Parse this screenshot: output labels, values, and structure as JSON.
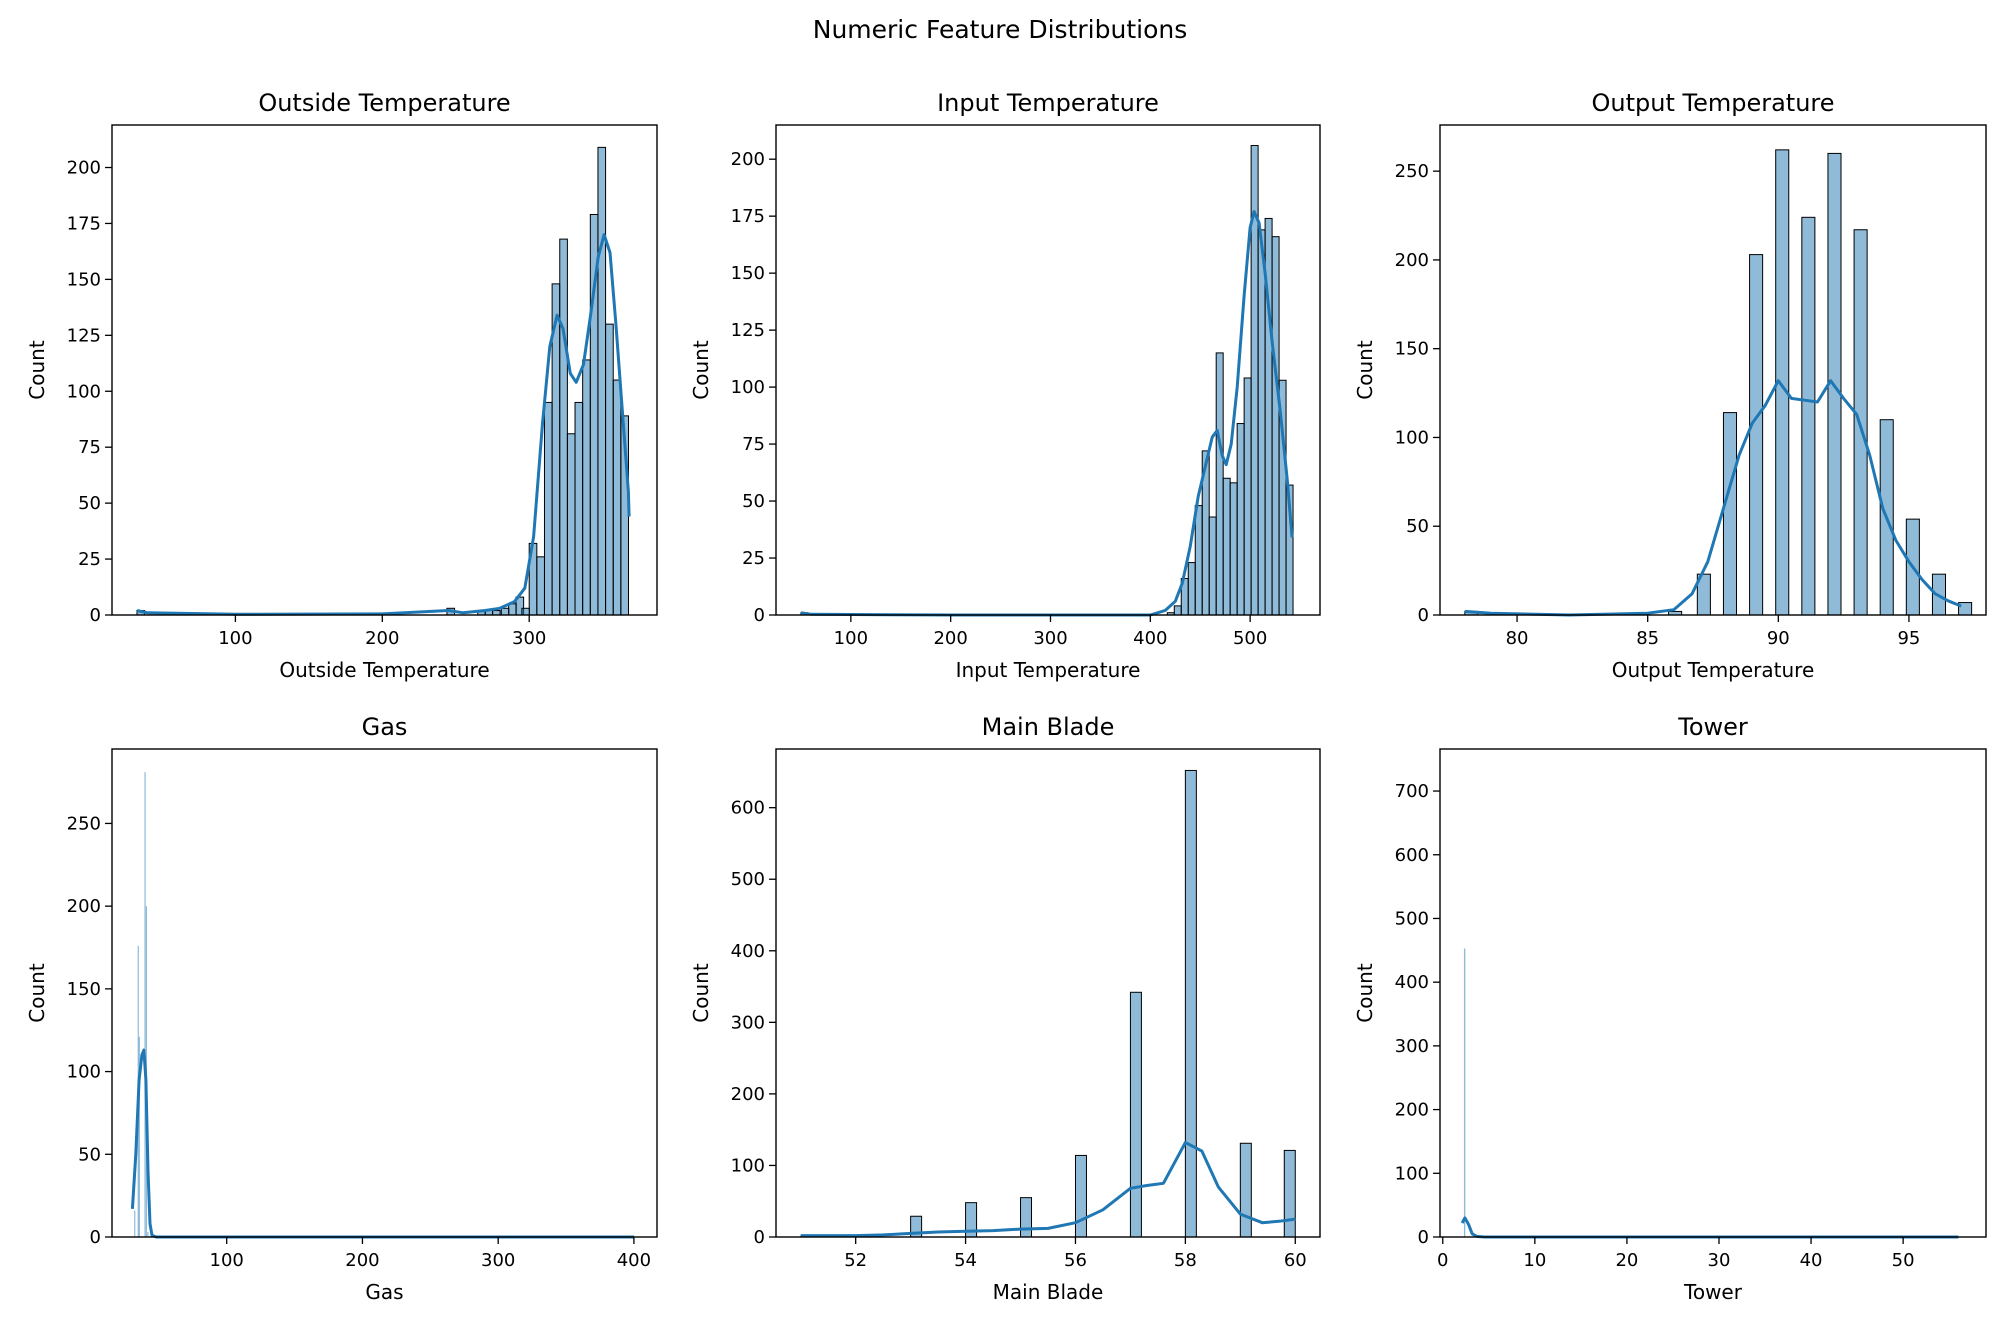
{
  "chart_data": {
    "title": "Numeric Feature Distributions",
    "style": {
      "bar_fill": "#1f77b4",
      "bar_alpha": 0.5,
      "kde_color": "#1f77b4",
      "edge_color": "#000000"
    },
    "charts": [
      {
        "type": "bar",
        "title": "Outside Temperature",
        "xlabel": "Outside Temperature",
        "ylabel": "Count",
        "xlim": [
          16,
          387
        ],
        "ylim": [
          0,
          219
        ],
        "xticks": [
          100,
          200,
          300
        ],
        "yticks": [
          0,
          25,
          50,
          75,
          100,
          125,
          150,
          175,
          200
        ],
        "bin_width": 5.2,
        "bars": [
          [
            33,
            2
          ],
          [
            244,
            3
          ],
          [
            265,
            2
          ],
          [
            270,
            2
          ],
          [
            275,
            2
          ],
          [
            281,
            3
          ],
          [
            286,
            5
          ],
          [
            291,
            8
          ],
          [
            295,
            3
          ],
          [
            300,
            32
          ],
          [
            305.2,
            26
          ],
          [
            310.4,
            95
          ],
          [
            315.6,
            148
          ],
          [
            320.8,
            168
          ],
          [
            326,
            81
          ],
          [
            331.2,
            95
          ],
          [
            336.4,
            114
          ],
          [
            341.6,
            179
          ],
          [
            346.8,
            209
          ],
          [
            352,
            130
          ],
          [
            357.2,
            105
          ],
          [
            362.4,
            89
          ]
        ],
        "kde": [
          [
            33,
            2
          ],
          [
            40,
            1
          ],
          [
            100,
            0.3
          ],
          [
            200,
            0.5
          ],
          [
            245,
            2
          ],
          [
            255,
            1
          ],
          [
            270,
            2
          ],
          [
            280,
            3
          ],
          [
            290,
            6
          ],
          [
            297,
            12
          ],
          [
            303,
            35
          ],
          [
            309,
            85
          ],
          [
            314,
            120
          ],
          [
            319,
            134
          ],
          [
            323,
            128
          ],
          [
            328,
            108
          ],
          [
            332,
            104
          ],
          [
            337,
            112
          ],
          [
            342,
            135
          ],
          [
            347,
            160
          ],
          [
            351,
            170
          ],
          [
            355,
            162
          ],
          [
            359,
            130
          ],
          [
            363,
            95
          ],
          [
            367.5,
            55
          ],
          [
            368,
            44
          ]
        ]
      },
      {
        "type": "bar",
        "title": "Input Temperature",
        "xlabel": "Input Temperature",
        "ylabel": "Count",
        "xlim": [
          25,
          570
        ],
        "ylim": [
          0,
          215
        ],
        "xticks": [
          100,
          200,
          300,
          400,
          500
        ],
        "yticks": [
          0,
          25,
          50,
          75,
          100,
          125,
          150,
          175,
          200
        ],
        "bin_width": 7,
        "bars": [
          [
            50,
            1
          ],
          [
            417,
            1
          ],
          [
            424,
            4
          ],
          [
            431,
            16
          ],
          [
            438,
            23
          ],
          [
            445,
            48
          ],
          [
            452,
            72
          ],
          [
            459,
            43
          ],
          [
            466,
            115
          ],
          [
            473,
            60
          ],
          [
            480,
            58
          ],
          [
            487,
            84
          ],
          [
            494,
            104
          ],
          [
            501,
            206
          ],
          [
            508,
            169
          ],
          [
            515,
            174
          ],
          [
            522,
            166
          ],
          [
            529,
            103
          ],
          [
            536,
            57
          ]
        ],
        "kde": [
          [
            50,
            1
          ],
          [
            60,
            0.3
          ],
          [
            200,
            0
          ],
          [
            400,
            0
          ],
          [
            415,
            2
          ],
          [
            425,
            6
          ],
          [
            432,
            14
          ],
          [
            440,
            30
          ],
          [
            448,
            52
          ],
          [
            455,
            65
          ],
          [
            462,
            78
          ],
          [
            467,
            81
          ],
          [
            472,
            70
          ],
          [
            476,
            66
          ],
          [
            481,
            75
          ],
          [
            487,
            100
          ],
          [
            494,
            140
          ],
          [
            500,
            170
          ],
          [
            504,
            177
          ],
          [
            509,
            172
          ],
          [
            515,
            150
          ],
          [
            522,
            120
          ],
          [
            530,
            90
          ],
          [
            537,
            60
          ],
          [
            542,
            34
          ]
        ]
      },
      {
        "type": "bar",
        "title": "Output Temperature",
        "xlabel": "Output Temperature",
        "ylabel": "Count",
        "xlim": [
          77.05,
          97.95
        ],
        "ylim": [
          0,
          276
        ],
        "xticks": [
          80,
          85,
          90,
          95
        ],
        "yticks": [
          0,
          50,
          100,
          150,
          200,
          250
        ],
        "bin_width": 0.5,
        "bars": [
          [
            78,
            2
          ],
          [
            85.8,
            2
          ],
          [
            86.9,
            23
          ],
          [
            87.9,
            114
          ],
          [
            88.9,
            203
          ],
          [
            89.9,
            262
          ],
          [
            90.9,
            224
          ],
          [
            91.9,
            260
          ],
          [
            92.9,
            217
          ],
          [
            93.9,
            110
          ],
          [
            94.9,
            54
          ],
          [
            95.9,
            23
          ],
          [
            96.9,
            7
          ]
        ],
        "kde": [
          [
            78,
            2
          ],
          [
            79,
            1
          ],
          [
            82,
            0
          ],
          [
            85,
            1
          ],
          [
            86,
            3
          ],
          [
            86.7,
            12
          ],
          [
            87.3,
            30
          ],
          [
            87.9,
            60
          ],
          [
            88.5,
            90
          ],
          [
            89,
            108
          ],
          [
            89.5,
            118
          ],
          [
            90,
            132
          ],
          [
            90.5,
            122
          ],
          [
            91,
            121
          ],
          [
            91.5,
            120
          ],
          [
            92,
            132
          ],
          [
            92.5,
            122
          ],
          [
            93,
            113
          ],
          [
            93.5,
            90
          ],
          [
            94,
            60
          ],
          [
            94.5,
            42
          ],
          [
            95,
            30
          ],
          [
            95.5,
            20
          ],
          [
            96,
            12
          ],
          [
            96.5,
            8
          ],
          [
            97,
            5
          ]
        ]
      },
      {
        "type": "bar",
        "title": "Gas",
        "xlabel": "Gas",
        "ylabel": "Count",
        "xlim": [
          15.5,
          417
        ],
        "ylim": [
          0,
          295
        ],
        "xticks": [
          100,
          200,
          300,
          400
        ],
        "yticks": [
          0,
          50,
          100,
          150,
          200,
          250
        ],
        "bin_width": 0.6,
        "bars": [
          [
            31.8,
            16
          ],
          [
            34.4,
            176
          ],
          [
            35.2,
            121
          ],
          [
            39.4,
            281
          ],
          [
            40.4,
            200
          ],
          [
            41.5,
            3
          ],
          [
            399,
            1
          ]
        ],
        "kde": [
          [
            30.5,
            17
          ],
          [
            33,
            50
          ],
          [
            35.5,
            95
          ],
          [
            37.5,
            110
          ],
          [
            39,
            113
          ],
          [
            40.5,
            95
          ],
          [
            42,
            40
          ],
          [
            43.5,
            8
          ],
          [
            45,
            1
          ],
          [
            48,
            0
          ],
          [
            400,
            0
          ]
        ]
      },
      {
        "type": "bar",
        "title": "Main Blade",
        "xlabel": "Main Blade",
        "ylabel": "Count",
        "xlim": [
          50.55,
          60.45
        ],
        "ylim": [
          0,
          682
        ],
        "xticks": [
          52,
          54,
          56,
          58,
          60
        ],
        "yticks": [
          0,
          100,
          200,
          300,
          400,
          500,
          600
        ],
        "bin_width": 0.2,
        "bars": [
          [
            51,
            1
          ],
          [
            53,
            29
          ],
          [
            54,
            48
          ],
          [
            55,
            55
          ],
          [
            56,
            114
          ],
          [
            57,
            342
          ],
          [
            58,
            652
          ],
          [
            59,
            131
          ],
          [
            59.8,
            121
          ]
        ],
        "kde": [
          [
            51,
            2
          ],
          [
            52,
            2
          ],
          [
            52.5,
            3
          ],
          [
            53,
            5
          ],
          [
            53.5,
            7
          ],
          [
            54,
            8
          ],
          [
            54.5,
            9
          ],
          [
            55,
            11
          ],
          [
            55.5,
            12
          ],
          [
            56,
            20
          ],
          [
            56.5,
            38
          ],
          [
            57,
            68
          ],
          [
            57.3,
            72
          ],
          [
            57.6,
            75
          ],
          [
            58,
            132
          ],
          [
            58.3,
            120
          ],
          [
            58.6,
            70
          ],
          [
            59,
            32
          ],
          [
            59.4,
            20
          ],
          [
            59.7,
            22
          ],
          [
            60,
            25
          ]
        ]
      },
      {
        "type": "bar",
        "title": "Tower",
        "xlabel": "Tower",
        "ylabel": "Count",
        "xlim": [
          -0.3,
          59
        ],
        "ylim": [
          0,
          766
        ],
        "xticks": [
          0,
          10,
          20,
          30,
          40,
          50
        ],
        "yticks": [
          0,
          100,
          200,
          300,
          400,
          500,
          600,
          700
        ],
        "bin_width": 0.15,
        "bars": [
          [
            2.3,
            453
          ]
        ],
        "kde": [
          [
            2.1,
            22
          ],
          [
            2.4,
            30
          ],
          [
            2.8,
            20
          ],
          [
            3.2,
            5
          ],
          [
            3.7,
            1
          ],
          [
            4.5,
            0
          ],
          [
            56,
            0
          ]
        ]
      }
    ]
  }
}
